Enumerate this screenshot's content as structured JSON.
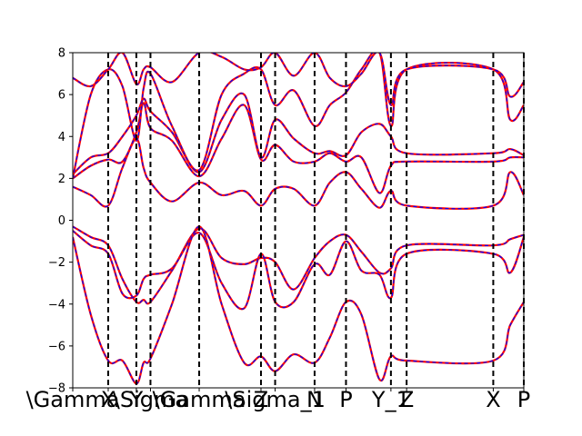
{
  "chart_data": {
    "type": "line",
    "title": "",
    "xlabel": "",
    "ylabel": "",
    "ylim": [
      -8,
      8
    ],
    "xlim": [
      0,
      1
    ],
    "grid": false,
    "legend": "none",
    "y_ticks": [
      {
        "value": 8,
        "label": "8"
      },
      {
        "value": 6,
        "label": "6"
      },
      {
        "value": 4,
        "label": "4"
      },
      {
        "value": 2,
        "label": "2"
      },
      {
        "value": 0,
        "label": "0"
      },
      {
        "value": -2,
        "label": "−2"
      },
      {
        "value": -4,
        "label": "−4"
      },
      {
        "value": -6,
        "label": "−6"
      },
      {
        "value": -8,
        "label": "−8"
      }
    ],
    "x_ticks": [
      {
        "value": 0.0,
        "label": "\\Gamma"
      },
      {
        "value": 0.0786,
        "label": "X"
      },
      {
        "value": 0.141,
        "label": "Y"
      },
      {
        "value": 0.1723,
        "label": "\\Sigma"
      },
      {
        "value": 0.2803,
        "label": "\\Gamma"
      },
      {
        "value": 0.4173,
        "label": "Z"
      },
      {
        "value": 0.4487,
        "label": "\\Sigma_1"
      },
      {
        "value": 0.5362,
        "label": "N"
      },
      {
        "value": 0.6058,
        "label": "P"
      },
      {
        "value": 0.7054,
        "label": "Y_1"
      },
      {
        "value": 0.7402,
        "label": "Z"
      },
      {
        "value": 0.9323,
        "label": "X"
      },
      {
        "value": 1.0,
        "label": "P"
      }
    ],
    "high_symmetry_lines": [
      0.0786,
      0.141,
      0.1723,
      0.2803,
      0.4173,
      0.4487,
      0.5362,
      0.6058,
      0.7054,
      0.7402,
      0.9323,
      1.0
    ],
    "colors": {
      "line_a": "#ff0000",
      "line_b": "#0000ff",
      "vline": "#000000",
      "axes": "#000000"
    },
    "series": [
      {
        "style": "dashed-overlay",
        "x": [
          0,
          0.04,
          0.0786,
          0.11,
          0.141,
          0.157,
          0.1723,
          0.22,
          0.2803,
          0.33,
          0.38,
          0.4173,
          0.4487,
          0.49,
          0.5362,
          0.57,
          0.6058,
          0.64,
          0.68,
          0.7054,
          0.7402,
          0.9323,
          0.97,
          1.0
        ],
        "y": [
          -0.3,
          -0.8,
          -1.2,
          -2.8,
          -3.9,
          -3.8,
          -3.9,
          -2.4,
          -0.4,
          -1.8,
          -2.1,
          -1.8,
          -2.0,
          -3.3,
          -1.8,
          -1.0,
          -0.7,
          -1.5,
          -2.5,
          -2.3,
          -1.2,
          -1.2,
          -0.9,
          -0.7
        ]
      },
      {
        "style": "dashed-overlay",
        "x": [
          0,
          0.04,
          0.0786,
          0.11,
          0.141,
          0.157,
          0.1723,
          0.22,
          0.2803,
          0.33,
          0.38,
          0.4173,
          0.4487,
          0.49,
          0.5362,
          0.57,
          0.6058,
          0.64,
          0.68,
          0.7054,
          0.7402,
          0.9323,
          0.97,
          1.0
        ],
        "y": [
          -0.5,
          -1.2,
          -1.6,
          -3.5,
          -3.6,
          -2.8,
          -2.6,
          -2.3,
          -0.6,
          -3.0,
          -4.2,
          -1.6,
          -3.9,
          -3.9,
          -2.1,
          -2.6,
          -1.0,
          -2.4,
          -2.6,
          -3.7,
          -1.6,
          -1.6,
          -2.5,
          -0.8
        ]
      },
      {
        "style": "dashed-overlay",
        "x": [
          0,
          0.04,
          0.0786,
          0.11,
          0.141,
          0.157,
          0.1723,
          0.22,
          0.2803,
          0.33,
          0.38,
          0.4173,
          0.4487,
          0.49,
          0.5362,
          0.57,
          0.6058,
          0.64,
          0.68,
          0.7054,
          0.7402,
          0.9323,
          0.97,
          1.0
        ],
        "y": [
          -0.8,
          -4.5,
          -6.7,
          -6.7,
          -7.8,
          -6.8,
          -6.6,
          -4.0,
          -0.3,
          -4.0,
          -6.8,
          -6.5,
          -7.2,
          -6.4,
          -6.8,
          -5.6,
          -3.9,
          -4.5,
          -7.6,
          -6.5,
          -6.7,
          -6.7,
          -5.0,
          -3.9
        ]
      },
      {
        "style": "dashed-overlay",
        "x": [
          0,
          0.04,
          0.0786,
          0.11,
          0.141,
          0.157,
          0.1723,
          0.22,
          0.2803,
          0.33,
          0.38,
          0.4173,
          0.4487,
          0.49,
          0.5362,
          0.57,
          0.6058,
          0.64,
          0.68,
          0.7054,
          0.7402,
          0.9323,
          0.97,
          1.0
        ],
        "y": [
          1.6,
          1.2,
          0.7,
          2.5,
          3.9,
          2.5,
          1.8,
          0.9,
          1.8,
          1.2,
          1.4,
          0.7,
          1.5,
          1.5,
          0.7,
          1.8,
          2.3,
          1.5,
          0.6,
          1.4,
          0.7,
          0.7,
          2.3,
          1.2
        ]
      },
      {
        "style": "dashed-overlay",
        "x": [
          0,
          0.04,
          0.0786,
          0.11,
          0.141,
          0.157,
          0.1723,
          0.22,
          0.2803,
          0.33,
          0.38,
          0.4173,
          0.4487,
          0.49,
          0.5362,
          0.57,
          0.6058,
          0.64,
          0.68,
          0.7054,
          0.7402,
          0.9323,
          0.97,
          1.0
        ],
        "y": [
          2.0,
          2.6,
          2.9,
          2.8,
          4.2,
          5.6,
          4.4,
          3.8,
          2.1,
          3.9,
          5.5,
          2.9,
          3.6,
          2.8,
          2.8,
          3.2,
          2.8,
          3.0,
          1.3,
          2.6,
          2.8,
          2.8,
          3.0,
          3.0
        ]
      },
      {
        "style": "dashed-overlay",
        "x": [
          0,
          0.04,
          0.0786,
          0.11,
          0.141,
          0.157,
          0.1723,
          0.22,
          0.2803,
          0.33,
          0.38,
          0.4173,
          0.4487,
          0.49,
          0.5362,
          0.57,
          0.6058,
          0.64,
          0.68,
          0.7054,
          0.7402,
          0.9323,
          0.97,
          1.0
        ],
        "y": [
          2.2,
          3.0,
          3.2,
          4.0,
          5.0,
          5.8,
          5.2,
          4.2,
          2.3,
          4.8,
          6.0,
          3.0,
          4.8,
          3.9,
          3.2,
          3.3,
          3.1,
          4.2,
          4.6,
          4.0,
          3.2,
          3.2,
          3.4,
          3.1
        ]
      },
      {
        "style": "dashed-overlay",
        "x": [
          0,
          0.04,
          0.0786,
          0.11,
          0.141,
          0.157,
          0.1723,
          0.22,
          0.2803,
          0.33,
          0.38,
          0.4173,
          0.4487,
          0.49,
          0.5362,
          0.57,
          0.6058,
          0.64,
          0.68,
          0.7054,
          0.7402,
          0.9323,
          0.97,
          1.0
        ],
        "y": [
          2.0,
          6.0,
          7.2,
          6.4,
          3.8,
          6.3,
          7.0,
          4.5,
          2.4,
          6.0,
          7.0,
          7.2,
          5.5,
          6.2,
          4.5,
          5.5,
          6.1,
          7.2,
          8.0,
          4.5,
          7.2,
          7.2,
          4.8,
          5.5
        ]
      },
      {
        "style": "dashed-overlay",
        "x": [
          0,
          0.04,
          0.0786,
          0.11,
          0.141,
          0.157,
          0.1723,
          0.22,
          0.2803,
          0.33,
          0.38,
          0.4173,
          0.4487,
          0.49,
          0.5362,
          0.57,
          0.6058,
          0.64,
          0.68,
          0.7054,
          0.7402,
          0.9323,
          0.97,
          1.0
        ],
        "y": [
          6.8,
          6.4,
          7.2,
          8.0,
          6.5,
          7.2,
          7.3,
          6.6,
          8.0,
          7.8,
          7.2,
          7.3,
          8.0,
          6.9,
          8.0,
          6.8,
          6.4,
          7.0,
          8.0,
          5.5,
          7.2,
          7.2,
          5.9,
          6.6
        ]
      }
    ]
  }
}
